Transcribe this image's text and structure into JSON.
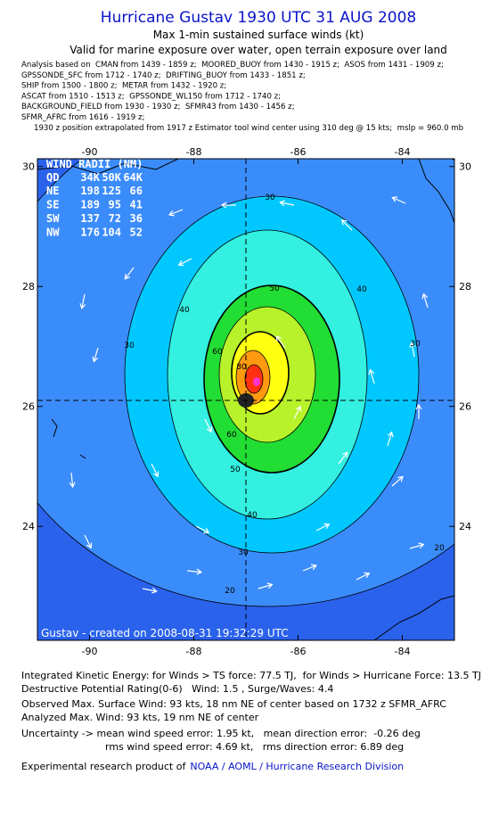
{
  "header": {
    "title": "Hurricane Gustav 1930 UTC 31 AUG 2008",
    "subtitle": "Max 1-min sustained surface winds (kt)",
    "validity": "Valid for marine exposure over water, open terrain exposure over land",
    "analysis_lines": [
      "Analysis based on  CMAN from 1439 - 1859 z;  MOORED_BUOY from 1430 - 1915 z;  ASOS from 1431 - 1909 z;",
      "GPSSONDE_SFC from 1712 - 1740 z;  DRIFTING_BUOY from 1433 - 1851 z;",
      "SHIP from 1500 - 1800 z;  METAR from 1432 - 1920 z;",
      "ASCAT from 1510 - 1513 z;  GPSSONDE_WL150 from 1712 - 1740 z;",
      "BACKGROUND_FIELD from 1930 - 1930 z;  SFMR43 from 1430 - 1456 z;",
      "SFMR_AFRC from 1616 - 1919 z;",
      "1930 z position extrapolated from 1917 z Estimator tool wind center using 310 deg @ 15 kts;  mslp = 960.0 mb"
    ]
  },
  "map": {
    "xlim": [
      -91,
      -83
    ],
    "ylim": [
      22.1,
      30.13
    ],
    "xticks": [
      -90,
      -88,
      -86,
      -84
    ],
    "yticks": [
      24,
      26,
      28,
      30
    ],
    "contour_labels": [
      30,
      40,
      30,
      50,
      40,
      30,
      60,
      80,
      60,
      50,
      40,
      30,
      20,
      20
    ],
    "wind_radii": {
      "title": "WIND RADII (NM)",
      "columns": [
        "QD",
        "34K",
        "50K",
        "64K"
      ],
      "rows": [
        [
          "NE",
          198,
          125,
          66
        ],
        [
          "SE",
          189,
          95,
          41
        ],
        [
          "SW",
          137,
          72,
          36
        ],
        [
          "NW",
          176,
          104,
          52
        ]
      ]
    },
    "credit": "Gustav - created on 2008-08-31 19:32:29 UTC"
  },
  "footer": {
    "lines": [
      "Integrated Kinetic Energy: for Winds > TS force: 77.5 TJ,  for Winds > Hurricane Force: 13.5 TJ",
      "Destructive Potential Rating(0-6)   Wind: 1.5 , Surge/Waves: 4.4",
      "Observed Max. Surface Wind: 93 kts, 18 nm NE of center based on 1732 z SFMR_AFRC",
      "Analyzed Max. Wind: 93 kts, 19 nm NE of center",
      "Uncertainty -> mean wind speed error: 1.95 kt,   mean direction error:  -0.26 deg",
      "rms wind speed error: 4.69 kt,   rms direction error: 6.89 deg"
    ],
    "product_prefix": "Experimental research product of",
    "product_org": "NOAA / AOML / Hurricane Research Division"
  }
}
